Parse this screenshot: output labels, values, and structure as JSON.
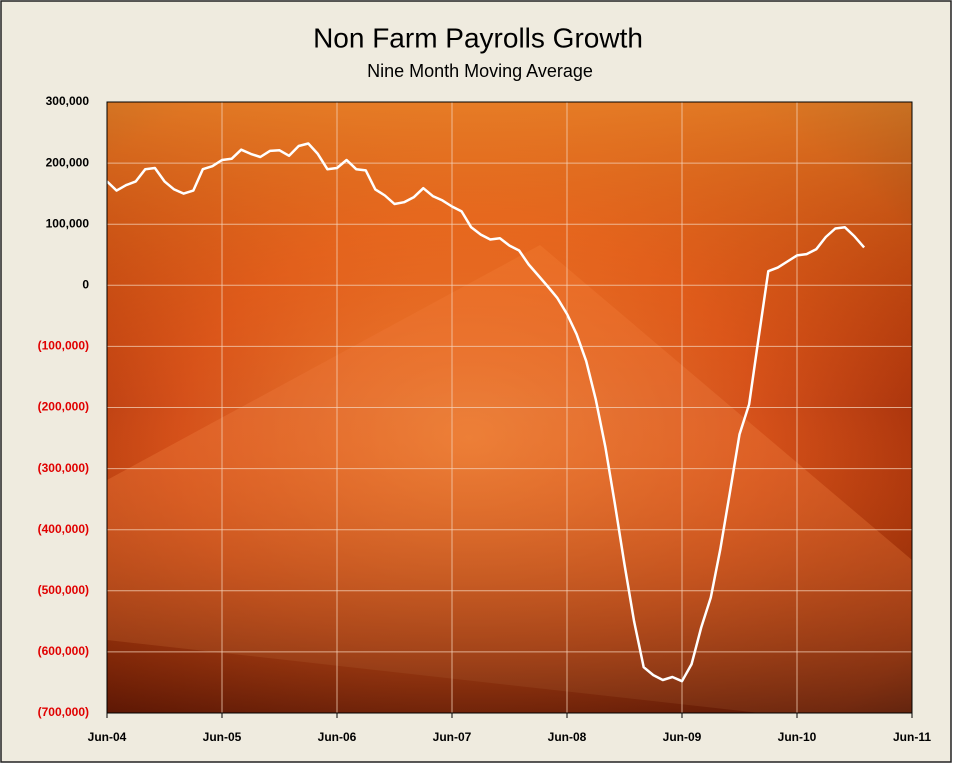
{
  "chart_data": {
    "type": "line",
    "title": "Non Farm Payrolls Growth",
    "subtitle": "Nine Month Moving Average",
    "x": [
      "2004-06",
      "2004-07",
      "2004-08",
      "2004-09",
      "2004-10",
      "2004-11",
      "2004-12",
      "2005-01",
      "2005-02",
      "2005-03",
      "2005-04",
      "2005-05",
      "2005-06",
      "2005-07",
      "2005-08",
      "2005-09",
      "2005-10",
      "2005-11",
      "2005-12",
      "2006-01",
      "2006-02",
      "2006-03",
      "2006-04",
      "2006-05",
      "2006-06",
      "2006-07",
      "2006-08",
      "2006-09",
      "2006-10",
      "2006-11",
      "2006-12",
      "2007-01",
      "2007-02",
      "2007-03",
      "2007-04",
      "2007-05",
      "2007-06",
      "2007-07",
      "2007-08",
      "2007-09",
      "2007-10",
      "2007-11",
      "2007-12",
      "2008-01",
      "2008-02",
      "2008-03",
      "2008-04",
      "2008-05",
      "2008-06",
      "2008-07",
      "2008-08",
      "2008-09",
      "2008-10",
      "2008-11",
      "2008-12",
      "2009-01",
      "2009-02",
      "2009-03",
      "2009-04",
      "2009-05",
      "2009-06",
      "2009-07",
      "2009-08",
      "2009-09",
      "2009-10",
      "2009-11",
      "2009-12",
      "2010-01",
      "2010-02",
      "2010-03",
      "2010-04",
      "2010-05",
      "2010-06",
      "2010-07",
      "2010-08",
      "2010-09",
      "2010-10",
      "2010-11",
      "2010-12",
      "2011-01"
    ],
    "series": [
      {
        "name": "Nine Month Moving Average",
        "color": "#ffffff",
        "values": [
          170000,
          155000,
          164000,
          170000,
          190000,
          192000,
          170000,
          157000,
          150000,
          155000,
          190000,
          195000,
          205000,
          207000,
          222000,
          215000,
          210000,
          220000,
          221000,
          212000,
          228000,
          232000,
          215000,
          190000,
          192000,
          205000,
          190000,
          188000,
          157000,
          147000,
          133000,
          136000,
          144000,
          159000,
          146000,
          139000,
          129000,
          121000,
          95000,
          83000,
          75000,
          77000,
          65000,
          57000,
          34000,
          16000,
          -2000,
          -21000,
          -47000,
          -80000,
          -124000,
          -187000,
          -264000,
          -358000,
          -457000,
          -550000,
          -625000,
          -638000,
          -646000,
          -641000,
          -648000,
          -620000,
          -560000,
          -511000,
          -432000,
          -339000,
          -244000,
          -195000,
          -85000,
          23000,
          29000,
          39000,
          49000,
          51000,
          59000,
          79000,
          93000,
          95000,
          80000,
          62000
        ]
      }
    ],
    "xlim": [
      "2004-06",
      "2011-06"
    ],
    "xticks": [
      {
        "value": "2004-06",
        "label": "Jun-04"
      },
      {
        "value": "2005-06",
        "label": "Jun-05"
      },
      {
        "value": "2006-06",
        "label": "Jun-06"
      },
      {
        "value": "2007-06",
        "label": "Jun-07"
      },
      {
        "value": "2008-06",
        "label": "Jun-08"
      },
      {
        "value": "2009-06",
        "label": "Jun-09"
      },
      {
        "value": "2010-06",
        "label": "Jun-10"
      },
      {
        "value": "2011-06",
        "label": "Jun-11"
      }
    ],
    "ylim": [
      -700000,
      300000
    ],
    "yticks": [
      {
        "value": 300000,
        "label": "300,000"
      },
      {
        "value": 200000,
        "label": "200,000"
      },
      {
        "value": 100000,
        "label": "100,000"
      },
      0,
      {
        "value": -100000,
        "label": "(100,000)"
      },
      {
        "value": -200000,
        "label": "(200,000)"
      },
      {
        "value": -300000,
        "label": "(300,000)"
      },
      {
        "value": -400000,
        "label": "(400,000)"
      },
      {
        "value": -500000,
        "label": "(500,000)"
      },
      {
        "value": -600000,
        "label": "(600,000)"
      },
      {
        "value": -700000,
        "label": "(700,000)"
      }
    ],
    "negative_tick_color": "#e00000",
    "grid": true
  }
}
